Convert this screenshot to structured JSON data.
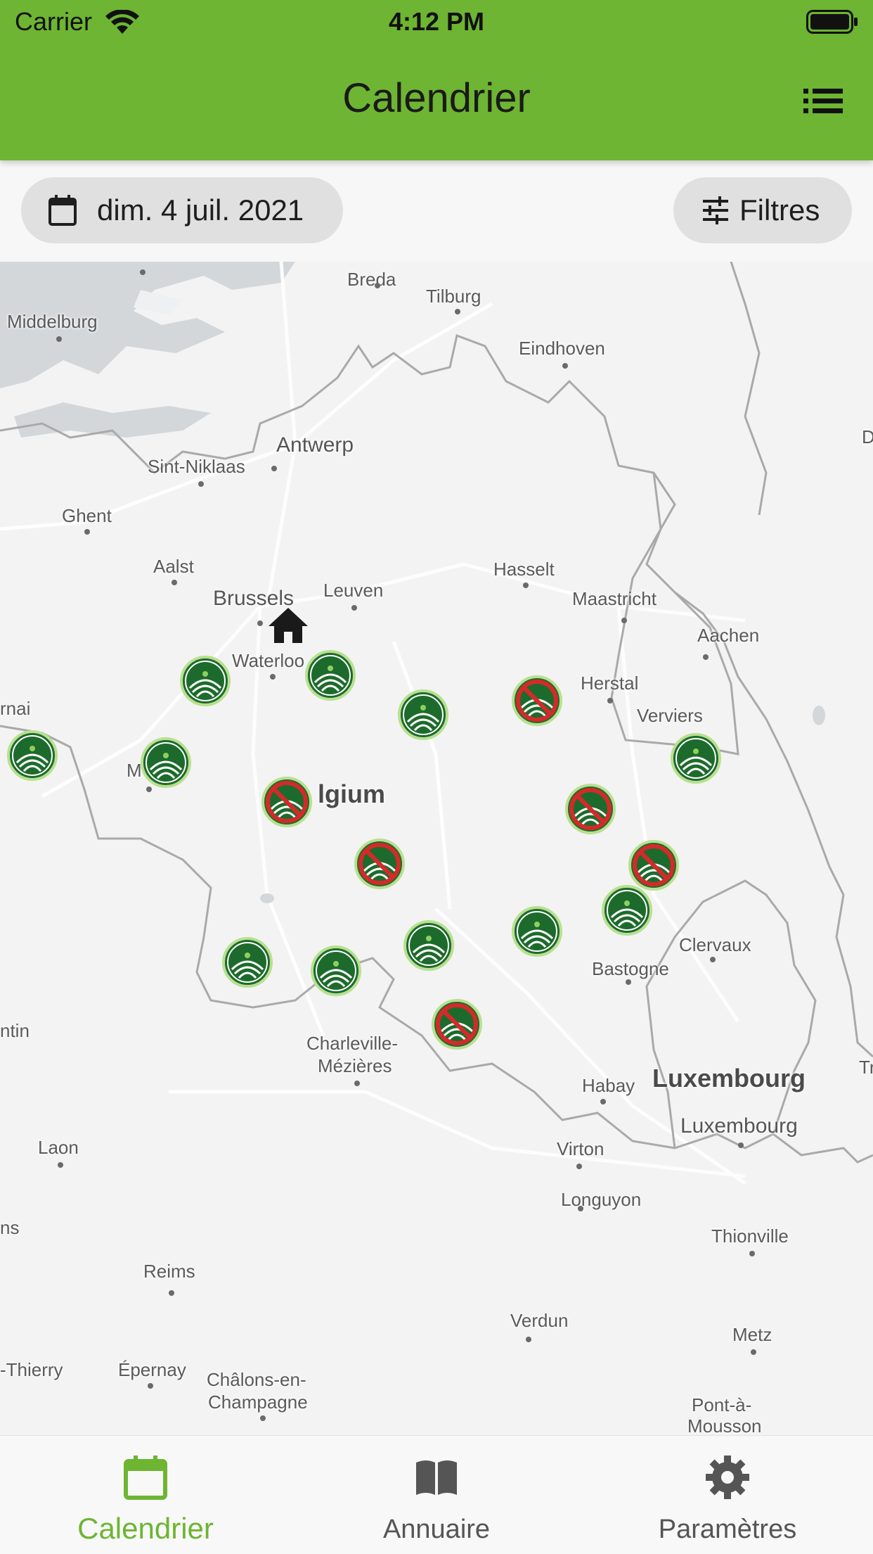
{
  "status_bar": {
    "carrier": "Carrier",
    "time": "4:12 PM"
  },
  "header": {
    "title": "Calendrier",
    "list_icon": "list-icon"
  },
  "toolbar": {
    "date_label": "dim. 4 juil. 2021",
    "filter_label": "Filtres"
  },
  "map": {
    "places": [
      {
        "name": "Breda"
      },
      {
        "name": "Tilburg"
      },
      {
        "name": "Middelburg"
      },
      {
        "name": "Eindhoven"
      },
      {
        "name": "Antwerp"
      },
      {
        "name": "Sint-Niklaas"
      },
      {
        "name": "Ghent"
      },
      {
        "name": "Aalst"
      },
      {
        "name": "Hasselt"
      },
      {
        "name": "Brussels"
      },
      {
        "name": "Leuven"
      },
      {
        "name": "Maastricht"
      },
      {
        "name": "Aachen"
      },
      {
        "name": "Waterloo"
      },
      {
        "name": "Herstal"
      },
      {
        "name": "rnai"
      },
      {
        "name": "Verviers"
      },
      {
        "name": "lgium"
      },
      {
        "name": "M"
      },
      {
        "name": "Clervaux"
      },
      {
        "name": "Bastogne"
      },
      {
        "name": "ntin"
      },
      {
        "name": "Charleville-"
      },
      {
        "name": "Mézières"
      },
      {
        "name": "Habay"
      },
      {
        "name": "Luxembourg"
      },
      {
        "name": "Luxembourg"
      },
      {
        "name": "Laon"
      },
      {
        "name": "Virton"
      },
      {
        "name": "Longuyon"
      },
      {
        "name": "ns"
      },
      {
        "name": "Thionville"
      },
      {
        "name": "Reims"
      },
      {
        "name": "Verdun"
      },
      {
        "name": "Metz"
      },
      {
        "name": "-Thierry"
      },
      {
        "name": "Épernay"
      },
      {
        "name": "Châlons-en-"
      },
      {
        "name": "Champagne"
      },
      {
        "name": "Pont-à-"
      },
      {
        "name": "Mousson"
      },
      {
        "name": "D"
      },
      {
        "name": "Tr"
      }
    ],
    "markers": [
      {
        "status": "open"
      },
      {
        "status": "open"
      },
      {
        "status": "open"
      },
      {
        "status": "closed"
      },
      {
        "status": "open"
      },
      {
        "status": "open"
      },
      {
        "status": "open"
      },
      {
        "status": "closed"
      },
      {
        "status": "closed"
      },
      {
        "status": "closed"
      },
      {
        "status": "closed"
      },
      {
        "status": "open"
      },
      {
        "status": "open"
      },
      {
        "status": "open"
      },
      {
        "status": "open"
      },
      {
        "status": "open"
      },
      {
        "status": "closed"
      }
    ],
    "home_icon": "home-icon"
  },
  "bottom_nav": [
    {
      "label": "Calendrier",
      "icon": "calendar-icon",
      "active": true
    },
    {
      "label": "Annuaire",
      "icon": "book-icon",
      "active": false
    },
    {
      "label": "Paramètres",
      "icon": "gear-icon",
      "active": false
    }
  ],
  "colors": {
    "accent": "#6db532",
    "marker_open": "#1d6b2c",
    "marker_closed": "#d42a2a"
  }
}
